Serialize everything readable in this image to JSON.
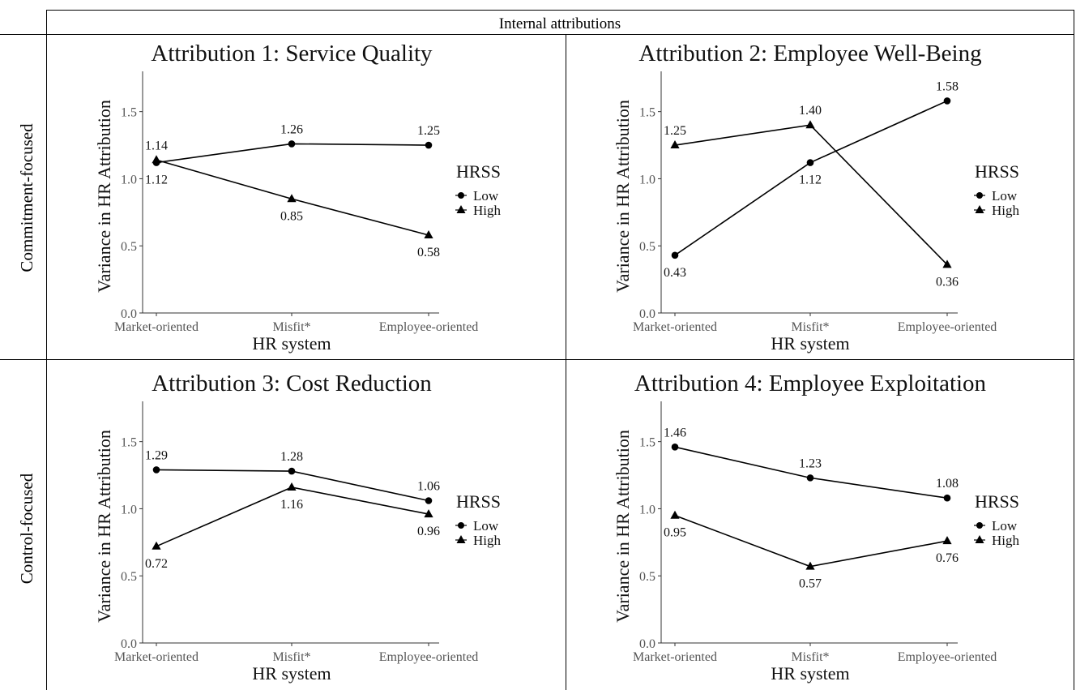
{
  "header": "Internal attributions",
  "row_labels": [
    "Commitment-focused",
    "Control-focused"
  ],
  "chart_data": [
    {
      "type": "line",
      "title": "Attribution 1: Service Quality",
      "xlabel": "HR system",
      "ylabel": "Variance in HR Attribution",
      "categories": [
        "Market-oriented",
        "Misfit*",
        "Employee-oriented"
      ],
      "ylim": [
        0,
        1.8
      ],
      "yticks": [
        "0.0",
        "0.5",
        "1.0",
        "1.5"
      ],
      "grid": false,
      "legend": {
        "title": "HRSS",
        "position": "right"
      },
      "series": [
        {
          "name": "Low",
          "marker": "circle",
          "values": [
            1.12,
            1.26,
            1.25
          ],
          "labels": [
            "1.12",
            "1.26",
            "1.25"
          ]
        },
        {
          "name": "High",
          "marker": "triangle",
          "values": [
            1.14,
            0.85,
            0.58
          ],
          "labels": [
            "1.14",
            "0.85",
            "0.58"
          ]
        }
      ]
    },
    {
      "type": "line",
      "title": "Attribution 2: Employee Well-Being",
      "xlabel": "HR system",
      "ylabel": "Variance in HR Attribution",
      "categories": [
        "Market-oriented",
        "Misfit*",
        "Employee-oriented"
      ],
      "ylim": [
        0,
        1.8
      ],
      "yticks": [
        "0.0",
        "0.5",
        "1.0",
        "1.5"
      ],
      "grid": false,
      "legend": {
        "title": "HRSS",
        "position": "right"
      },
      "series": [
        {
          "name": "Low",
          "marker": "circle",
          "values": [
            0.43,
            1.12,
            1.58
          ],
          "labels": [
            "0.43",
            "1.12",
            "1.58"
          ]
        },
        {
          "name": "High",
          "marker": "triangle",
          "values": [
            1.25,
            1.4,
            0.36
          ],
          "labels": [
            "1.25",
            "1.40",
            "0.36"
          ]
        }
      ]
    },
    {
      "type": "line",
      "title": "Attribution 3: Cost Reduction",
      "xlabel": "HR system",
      "ylabel": "Variance in HR Attribution",
      "categories": [
        "Market-oriented",
        "Misfit*",
        "Employee-oriented"
      ],
      "ylim": [
        0,
        1.8
      ],
      "yticks": [
        "0.0",
        "0.5",
        "1.0",
        "1.5"
      ],
      "grid": false,
      "legend": {
        "title": "HRSS",
        "position": "right"
      },
      "series": [
        {
          "name": "Low",
          "marker": "circle",
          "values": [
            1.29,
            1.28,
            1.06
          ],
          "labels": [
            "1.29",
            "1.28",
            "1.06"
          ]
        },
        {
          "name": "High",
          "marker": "triangle",
          "values": [
            0.72,
            1.16,
            0.96
          ],
          "labels": [
            "0.72",
            "1.16",
            "0.96"
          ]
        }
      ]
    },
    {
      "type": "line",
      "title": "Attribution 4: Employee Exploitation",
      "xlabel": "HR system",
      "ylabel": "Variance in HR Attribution",
      "categories": [
        "Market-oriented",
        "Misfit*",
        "Employee-oriented"
      ],
      "ylim": [
        0,
        1.8
      ],
      "yticks": [
        "0.0",
        "0.5",
        "1.0",
        "1.5"
      ],
      "grid": false,
      "legend": {
        "title": "HRSS",
        "position": "right"
      },
      "series": [
        {
          "name": "Low",
          "marker": "circle",
          "values": [
            1.46,
            1.23,
            1.08
          ],
          "labels": [
            "1.46",
            "1.23",
            "1.08"
          ]
        },
        {
          "name": "High",
          "marker": "triangle",
          "values": [
            0.95,
            0.57,
            0.76
          ],
          "labels": [
            "0.95",
            "0.57",
            "0.76"
          ]
        }
      ]
    }
  ]
}
